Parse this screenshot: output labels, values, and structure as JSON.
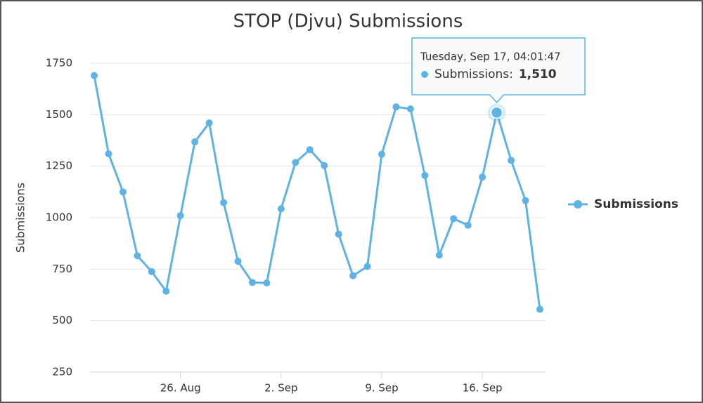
{
  "chart_data": {
    "type": "line",
    "title": "STOP (Djvu) Submissions",
    "y_label": "Submissions",
    "categories": [
      null,
      null,
      null,
      null,
      null,
      null,
      "26. Aug",
      null,
      null,
      null,
      null,
      null,
      null,
      "2. Sep",
      null,
      null,
      null,
      null,
      null,
      null,
      "9. Sep",
      null,
      null,
      null,
      null,
      null,
      null,
      "16. Sep",
      null,
      null,
      null,
      null
    ],
    "series": [
      {
        "name": "Submissions",
        "color": "#5eb3e4",
        "values": [
          1690,
          1310,
          1125,
          815,
          738,
          643,
          1010,
          1368,
          1460,
          1073,
          788,
          685,
          683,
          1043,
          1268,
          1330,
          1253,
          920,
          718,
          763,
          1308,
          1538,
          1528,
          1205,
          818,
          995,
          963,
          1197,
          1510,
          1278,
          1083,
          555
        ]
      }
    ],
    "ylim": [
      250,
      1750
    ],
    "yticks": [
      250,
      500,
      750,
      1000,
      1250,
      1500,
      1750
    ],
    "grid": true,
    "legend": "right",
    "tooltip": {
      "header": "Tuesday, Sep 17, 04:01:47",
      "label": "Submissions:",
      "value": "1,510"
    }
  }
}
